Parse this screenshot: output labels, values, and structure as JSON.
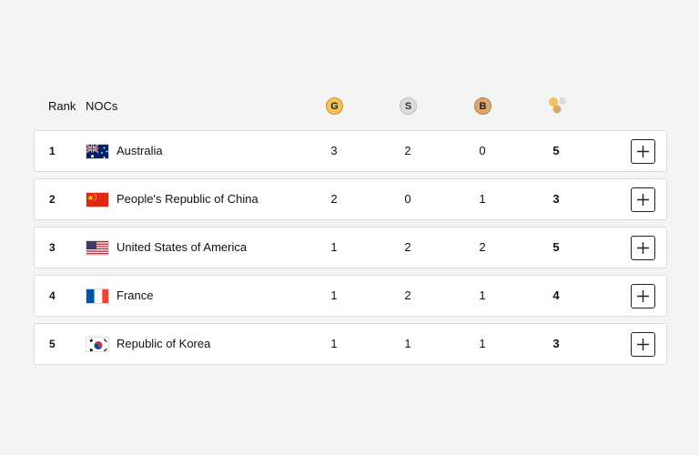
{
  "header": {
    "rank_label": "Rank",
    "noc_label": "NOCs",
    "gold_label": "G",
    "silver_label": "S",
    "bronze_label": "B",
    "total_icon": "medals-total-icon"
  },
  "rows": [
    {
      "rank": "1",
      "country": "Australia",
      "flag": "australia-flag",
      "gold": "3",
      "silver": "2",
      "bronze": "0",
      "total": "5"
    },
    {
      "rank": "2",
      "country": "People's Republic of China",
      "flag": "china-flag",
      "gold": "2",
      "silver": "0",
      "bronze": "1",
      "total": "3"
    },
    {
      "rank": "3",
      "country": "United States of America",
      "flag": "usa-flag",
      "gold": "1",
      "silver": "2",
      "bronze": "2",
      "total": "5"
    },
    {
      "rank": "4",
      "country": "France",
      "flag": "france-flag",
      "gold": "1",
      "silver": "2",
      "bronze": "1",
      "total": "4"
    },
    {
      "rank": "5",
      "country": "Republic of Korea",
      "flag": "korea-flag",
      "gold": "1",
      "silver": "1",
      "bronze": "1",
      "total": "3"
    }
  ],
  "colors": {
    "gold": "#f2c35b",
    "silver": "#dcdcdc",
    "bronze": "#d9a86c",
    "background": "#f4f4f4"
  }
}
